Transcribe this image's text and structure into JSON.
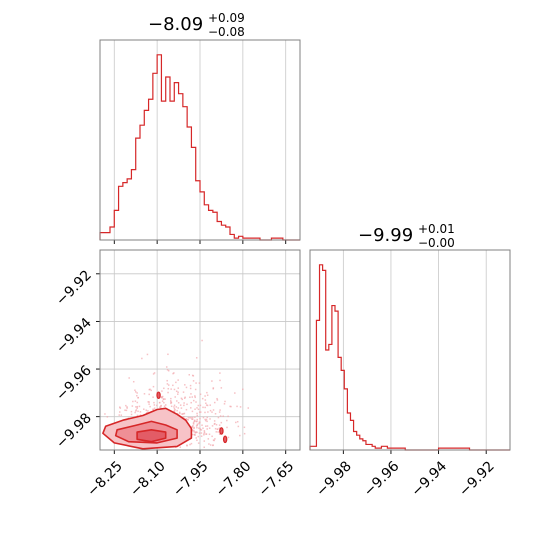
{
  "chart_data": [
    {
      "type": "histogram",
      "panel": "top-left",
      "title": {
        "value": "−8.09",
        "plus": "+0.09",
        "minus": "−0.08"
      },
      "xlim": [
        -8.3,
        -7.6
      ],
      "ylim": [
        0,
        1.08
      ],
      "grid": true,
      "color": "#d62728",
      "bins": [
        {
          "x0": -8.3,
          "x1": -8.265,
          "y": 0.04
        },
        {
          "x0": -8.265,
          "x1": -8.25,
          "y": 0.07
        },
        {
          "x0": -8.25,
          "x1": -8.235,
          "y": 0.16
        },
        {
          "x0": -8.235,
          "x1": -8.22,
          "y": 0.29
        },
        {
          "x0": -8.22,
          "x1": -8.205,
          "y": 0.31
        },
        {
          "x0": -8.205,
          "x1": -8.19,
          "y": 0.33
        },
        {
          "x0": -8.19,
          "x1": -8.175,
          "y": 0.38
        },
        {
          "x0": -8.175,
          "x1": -8.16,
          "y": 0.55
        },
        {
          "x0": -8.16,
          "x1": -8.145,
          "y": 0.62
        },
        {
          "x0": -8.145,
          "x1": -8.13,
          "y": 0.7
        },
        {
          "x0": -8.13,
          "x1": -8.115,
          "y": 0.76
        },
        {
          "x0": -8.115,
          "x1": -8.1,
          "y": 0.9
        },
        {
          "x0": -8.1,
          "x1": -8.085,
          "y": 1.0
        },
        {
          "x0": -8.085,
          "x1": -8.07,
          "y": 0.75
        },
        {
          "x0": -8.07,
          "x1": -8.055,
          "y": 0.88
        },
        {
          "x0": -8.055,
          "x1": -8.04,
          "y": 0.75
        },
        {
          "x0": -8.04,
          "x1": -8.025,
          "y": 0.85
        },
        {
          "x0": -8.025,
          "x1": -8.01,
          "y": 0.79
        },
        {
          "x0": -8.01,
          "x1": -7.995,
          "y": 0.72
        },
        {
          "x0": -7.995,
          "x1": -7.98,
          "y": 0.61
        },
        {
          "x0": -7.98,
          "x1": -7.965,
          "y": 0.5
        },
        {
          "x0": -7.965,
          "x1": -7.95,
          "y": 0.32
        },
        {
          "x0": -7.95,
          "x1": -7.935,
          "y": 0.26
        },
        {
          "x0": -7.935,
          "x1": -7.92,
          "y": 0.19
        },
        {
          "x0": -7.92,
          "x1": -7.905,
          "y": 0.16
        },
        {
          "x0": -7.905,
          "x1": -7.89,
          "y": 0.15
        },
        {
          "x0": -7.89,
          "x1": -7.875,
          "y": 0.1
        },
        {
          "x0": -7.875,
          "x1": -7.86,
          "y": 0.08
        },
        {
          "x0": -7.86,
          "x1": -7.845,
          "y": 0.07
        },
        {
          "x0": -7.845,
          "x1": -7.83,
          "y": 0.03
        },
        {
          "x0": -7.83,
          "x1": -7.815,
          "y": 0.01
        },
        {
          "x0": -7.815,
          "x1": -7.8,
          "y": 0.02
        },
        {
          "x0": -7.8,
          "x1": -7.74,
          "y": 0.01
        },
        {
          "x0": -7.74,
          "x1": -7.7,
          "y": 0.0
        },
        {
          "x0": -7.7,
          "x1": -7.66,
          "y": 0.01
        },
        {
          "x0": -7.66,
          "x1": -7.6,
          "y": 0.0
        }
      ]
    },
    {
      "type": "scatter-contour",
      "panel": "bottom-left",
      "xlim": [
        -8.3,
        -7.6
      ],
      "ylim": [
        -9.994,
        -9.91
      ],
      "grid": true,
      "color": "#d62728",
      "x_ticks": [
        -8.25,
        -8.1,
        -7.95,
        -7.8,
        -7.65
      ],
      "x_tick_labels": [
        "−8.25",
        "−8.10",
        "−7.95",
        "−7.80",
        "−7.65"
      ],
      "y_ticks": [
        -9.92,
        -9.94,
        -9.96,
        -9.98
      ],
      "y_tick_labels": [
        "−9.92",
        "−9.94",
        "−9.96",
        "−9.98"
      ],
      "density_center": [
        -8.09,
        -9.988
      ],
      "contours": [
        [
          [
            -8.28,
            -9.984
          ],
          [
            -8.22,
            -9.9815
          ],
          [
            -8.15,
            -9.9795
          ],
          [
            -8.1,
            -9.977
          ],
          [
            -8.07,
            -9.9765
          ],
          [
            -8.03,
            -9.979
          ],
          [
            -8.0,
            -9.9815
          ],
          [
            -7.98,
            -9.985
          ],
          [
            -7.98,
            -9.989
          ],
          [
            -8.03,
            -9.9925
          ],
          [
            -8.15,
            -9.9935
          ],
          [
            -8.25,
            -9.991
          ],
          [
            -8.29,
            -9.987
          ]
        ],
        [
          [
            -8.24,
            -9.9855
          ],
          [
            -8.17,
            -9.9835
          ],
          [
            -8.12,
            -9.982
          ],
          [
            -8.07,
            -9.9835
          ],
          [
            -8.03,
            -9.9855
          ],
          [
            -8.03,
            -9.989
          ],
          [
            -8.1,
            -9.991
          ],
          [
            -8.2,
            -9.9905
          ],
          [
            -8.245,
            -9.988
          ]
        ],
        [
          [
            -8.17,
            -9.9865
          ],
          [
            -8.12,
            -9.9855
          ],
          [
            -8.07,
            -9.9865
          ],
          [
            -8.07,
            -9.989
          ],
          [
            -8.12,
            -9.9905
          ],
          [
            -8.17,
            -9.9895
          ]
        ]
      ],
      "islands": [
        [
          -8.095,
          -9.971
        ],
        [
          -7.875,
          -9.986
        ],
        [
          -7.862,
          -9.9895
        ]
      ]
    },
    {
      "type": "histogram",
      "panel": "bottom-right",
      "title": {
        "value": "−9.99",
        "plus": "+0.01",
        "minus": "−0.00"
      },
      "xlim": [
        -9.994,
        -9.91
      ],
      "ylim": [
        0,
        1.08
      ],
      "grid": true,
      "color": "#d62728",
      "x_ticks": [
        -9.98,
        -9.96,
        -9.94,
        -9.92
      ],
      "x_tick_labels": [
        "−9.98",
        "−9.96",
        "−9.94",
        "−9.92"
      ],
      "bins": [
        {
          "x0": -9.994,
          "x1": -9.9913,
          "y": 0.02
        },
        {
          "x0": -9.9913,
          "x1": -9.99,
          "y": 0.7
        },
        {
          "x0": -9.99,
          "x1": -9.9887,
          "y": 1.0
        },
        {
          "x0": -9.9887,
          "x1": -9.9874,
          "y": 0.97
        },
        {
          "x0": -9.9874,
          "x1": -9.9861,
          "y": 0.54
        },
        {
          "x0": -9.9861,
          "x1": -9.9848,
          "y": 0.57
        },
        {
          "x0": -9.9848,
          "x1": -9.9835,
          "y": 0.78
        },
        {
          "x0": -9.9835,
          "x1": -9.9822,
          "y": 0.75
        },
        {
          "x0": -9.9822,
          "x1": -9.9809,
          "y": 0.5
        },
        {
          "x0": -9.9809,
          "x1": -9.9796,
          "y": 0.43
        },
        {
          "x0": -9.9796,
          "x1": -9.9783,
          "y": 0.33
        },
        {
          "x0": -9.9783,
          "x1": -9.977,
          "y": 0.2
        },
        {
          "x0": -9.977,
          "x1": -9.9757,
          "y": 0.16
        },
        {
          "x0": -9.9757,
          "x1": -9.9744,
          "y": 0.1
        },
        {
          "x0": -9.9744,
          "x1": -9.9731,
          "y": 0.08
        },
        {
          "x0": -9.9731,
          "x1": -9.9718,
          "y": 0.06
        },
        {
          "x0": -9.9718,
          "x1": -9.9705,
          "y": 0.05
        },
        {
          "x0": -9.9705,
          "x1": -9.9692,
          "y": 0.03
        },
        {
          "x0": -9.9692,
          "x1": -9.9679,
          "y": 0.03
        },
        {
          "x0": -9.9679,
          "x1": -9.9666,
          "y": 0.02
        },
        {
          "x0": -9.9666,
          "x1": -9.964,
          "y": 0.01
        },
        {
          "x0": -9.964,
          "x1": -9.9615,
          "y": 0.02
        },
        {
          "x0": -9.9615,
          "x1": -9.959,
          "y": 0.01
        },
        {
          "x0": -9.959,
          "x1": -9.954,
          "y": 0.01
        },
        {
          "x0": -9.954,
          "x1": -9.94,
          "y": 0.0
        },
        {
          "x0": -9.94,
          "x1": -9.927,
          "y": 0.01
        },
        {
          "x0": -9.927,
          "x1": -9.91,
          "y": 0.0
        }
      ]
    }
  ]
}
